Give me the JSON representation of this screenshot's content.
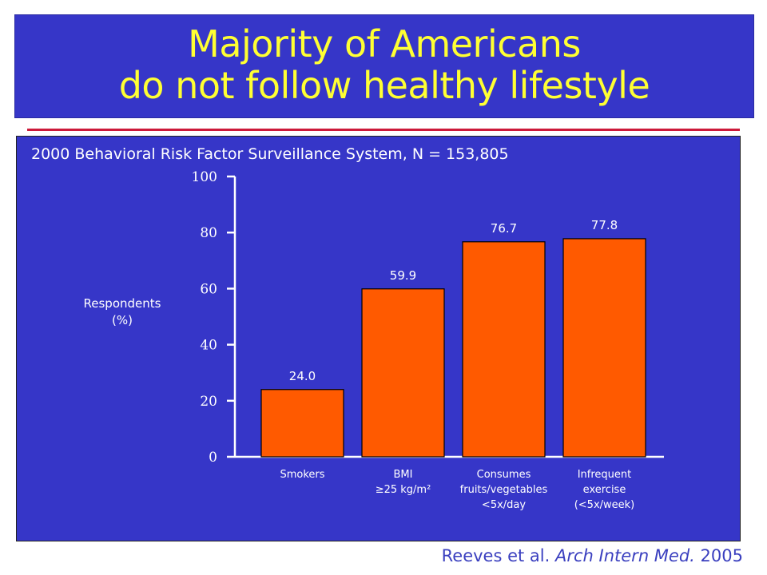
{
  "slide": {
    "title_line1": "Majority of Americans",
    "title_line2": "do not follow  healthy lifestyle",
    "title_color": "#ffff33",
    "panel_color": "#3636c8",
    "rule_color": "#cc1a3a"
  },
  "footer": {
    "authors": "Reeves et al.",
    "journal": "Arch Intern Med.",
    "year": "2005"
  },
  "chart_data": {
    "type": "bar",
    "title": "2000 Behavioral Risk Factor Surveillance System, N = 153,805",
    "ylabel_line1": "Respondents",
    "ylabel_line2": "(%)",
    "ylim": [
      0,
      100
    ],
    "yticks": [
      0,
      20,
      40,
      60,
      80,
      100
    ],
    "categories": [
      [
        "Smokers"
      ],
      [
        "BMI",
        "≥25 kg/m²"
      ],
      [
        "Consumes",
        "fruits/vegetables",
        "<5x/day"
      ],
      [
        "Infrequent",
        "exercise",
        "(<5x/week)"
      ]
    ],
    "values": [
      24.0,
      59.9,
      76.7,
      77.8
    ],
    "value_labels": [
      "24.0",
      "59.9",
      "76.7",
      "77.8"
    ],
    "bar_color": "#ff5a00",
    "grid": false
  }
}
